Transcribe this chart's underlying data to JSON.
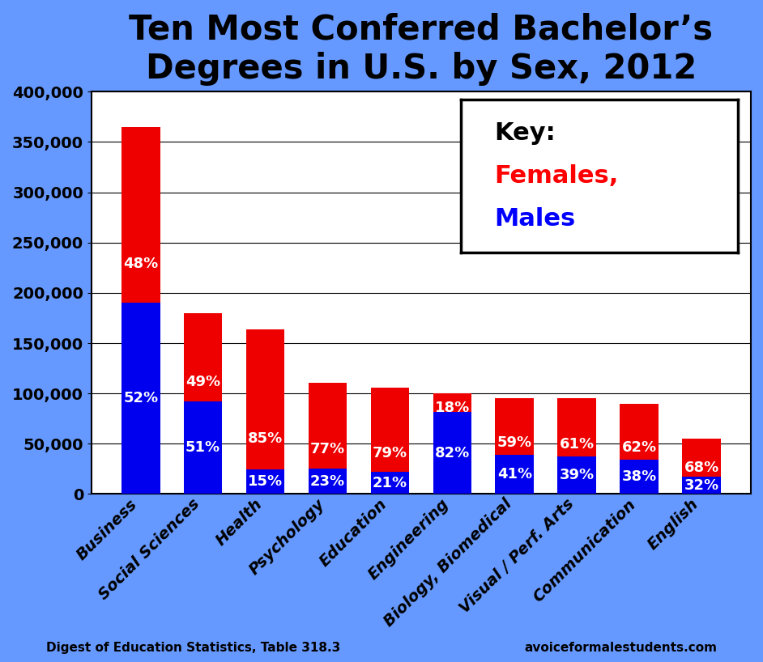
{
  "title": "Ten Most Conferred Bachelor’s\nDegrees in U.S. by Sex, 2012",
  "categories": [
    "Business",
    "Social Sciences",
    "Health",
    "Psychology",
    "Education",
    "Engineering",
    "Biology, Biomedical",
    "Visual / Perf. Arts",
    "Communication",
    "English"
  ],
  "male_values": [
    190000,
    92000,
    24600,
    25500,
    22100,
    82000,
    39000,
    37000,
    34200,
    17600
  ],
  "female_values": [
    175000,
    88000,
    139400,
    85500,
    83900,
    18000,
    56000,
    58000,
    55800,
    37400
  ],
  "male_pct": [
    52,
    51,
    15,
    23,
    21,
    82,
    41,
    39,
    38,
    32
  ],
  "female_pct": [
    48,
    49,
    85,
    77,
    79,
    18,
    59,
    61,
    62,
    68
  ],
  "male_color": "#0000ee",
  "female_color": "#ee0000",
  "bg_color": "#ffffff",
  "outer_border_color": "#6699ff",
  "title_fontsize": 30,
  "tick_fontsize": 14,
  "label_fontsize": 14,
  "ylabel_values": [
    0,
    50000,
    100000,
    150000,
    200000,
    250000,
    300000,
    350000,
    400000
  ],
  "footer_left": "Digest of Education Statistics, Table 318.3",
  "footer_right": "avoiceformalestudents.com",
  "pct_fontsize": 13
}
